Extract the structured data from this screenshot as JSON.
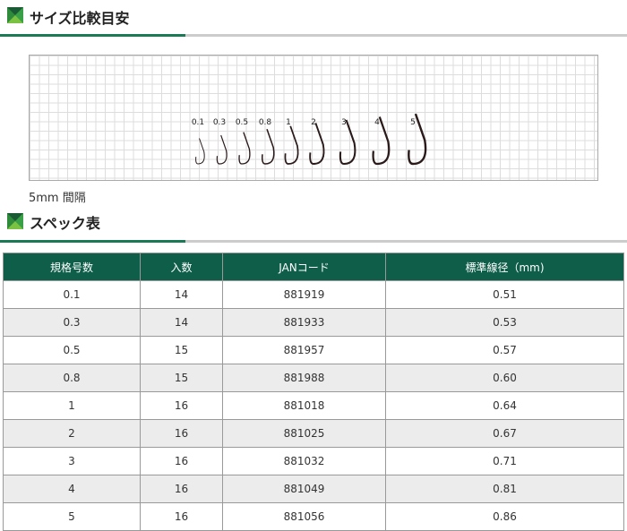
{
  "size_section": {
    "title": "サイズ比較目安",
    "grid_note": "5mm 間隔",
    "hook_sizes": [
      "0.1",
      "0.3",
      "0.5",
      "0.8",
      "1",
      "2",
      "3",
      "4",
      "5"
    ]
  },
  "spec_section": {
    "title": "スペック表"
  },
  "table": {
    "headers": [
      "規格号数",
      "入数",
      "JANコード",
      "標準線径（mm)"
    ],
    "rows": [
      [
        "0.1",
        "14",
        "881919",
        "0.51"
      ],
      [
        "0.3",
        "14",
        "881933",
        "0.53"
      ],
      [
        "0.5",
        "15",
        "881957",
        "0.57"
      ],
      [
        "0.8",
        "15",
        "881988",
        "0.60"
      ],
      [
        "1",
        "16",
        "881018",
        "0.64"
      ],
      [
        "2",
        "16",
        "881025",
        "0.67"
      ],
      [
        "3",
        "16",
        "881032",
        "0.71"
      ],
      [
        "4",
        "16",
        "881049",
        "0.81"
      ],
      [
        "5",
        "16",
        "881056",
        "0.86"
      ]
    ]
  },
  "colors": {
    "header_bg": "#0f5e4a",
    "accent": "#1a7a55"
  }
}
